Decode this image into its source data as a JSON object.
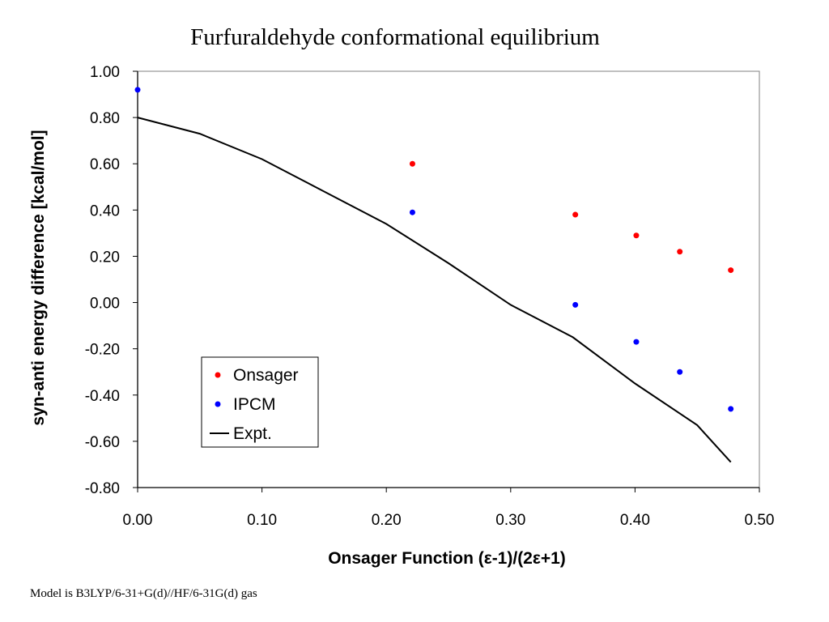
{
  "chart_data": {
    "type": "scatter",
    "title": "Furfuraldehyde conformational equilibrium",
    "xlabel": "Onsager Function (ε-1)/(2ε+1)",
    "ylabel": "syn-anti energy difference [kcal/mol]",
    "xlim": [
      0,
      0.5
    ],
    "ylim": [
      -0.8,
      1.0
    ],
    "x_ticks": [
      "0.00",
      "0.10",
      "0.20",
      "0.30",
      "0.40",
      "0.50"
    ],
    "y_ticks": [
      "1.00",
      "0.80",
      "0.60",
      "0.40",
      "0.20",
      "0.00",
      "-0.20",
      "-0.40",
      "-0.60",
      "-0.80"
    ],
    "grid": false,
    "legend_position": "bottom-left",
    "series": [
      {
        "name": "Onsager",
        "kind": "points",
        "color": "#ff0000",
        "points": [
          [
            0.221,
            0.6
          ],
          [
            0.352,
            0.38
          ],
          [
            0.401,
            0.29
          ],
          [
            0.436,
            0.22
          ],
          [
            0.477,
            0.14
          ]
        ]
      },
      {
        "name": "IPCM",
        "kind": "points",
        "color": "#0000ff",
        "points": [
          [
            0.0,
            0.92
          ],
          [
            0.221,
            0.39
          ],
          [
            0.352,
            -0.01
          ],
          [
            0.401,
            -0.17
          ],
          [
            0.436,
            -0.3
          ],
          [
            0.477,
            -0.46
          ]
        ]
      },
      {
        "name": "Expt.",
        "kind": "line",
        "color": "#000000",
        "points": [
          [
            0.0,
            0.8
          ],
          [
            0.05,
            0.73
          ],
          [
            0.1,
            0.62
          ],
          [
            0.15,
            0.48
          ],
          [
            0.2,
            0.34
          ],
          [
            0.25,
            0.17
          ],
          [
            0.3,
            -0.01
          ],
          [
            0.35,
            -0.15
          ],
          [
            0.4,
            -0.35
          ],
          [
            0.45,
            -0.53
          ],
          [
            0.477,
            -0.69
          ]
        ]
      }
    ]
  },
  "footnote": "Model is B3LYP/6-31+G(d)//HF/6-31G(d) gas"
}
